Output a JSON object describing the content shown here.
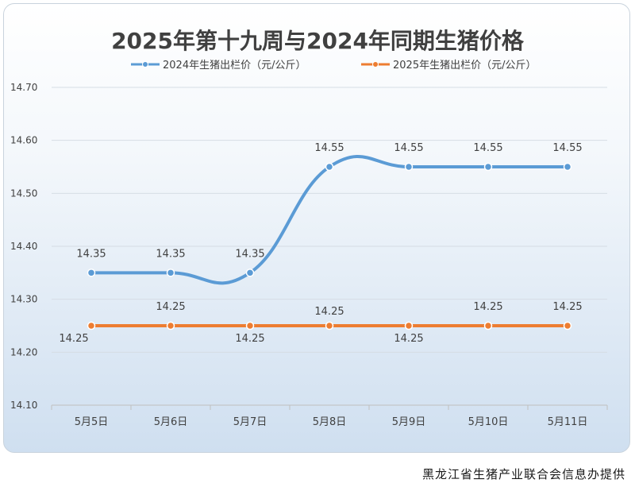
{
  "chart_data": {
    "type": "line",
    "title": "2025年第十九周与2024年同期生猪价格",
    "categories": [
      "5月5日",
      "5月6日",
      "5月7日",
      "5月8日",
      "5月9日",
      "5月10日",
      "5月11日"
    ],
    "series": [
      {
        "name": "2024年生猪出栏价（元/公斤）",
        "values": [
          14.35,
          14.35,
          14.35,
          14.55,
          14.55,
          14.55,
          14.55
        ],
        "labels": [
          "14.35",
          "14.35",
          "14.35",
          "14.55",
          "14.55",
          "14.55",
          "14.55"
        ],
        "color": "#5b9bd5",
        "smooth": true
      },
      {
        "name": "2025年生猪出栏价（元/公斤）",
        "values": [
          14.25,
          14.25,
          14.25,
          14.25,
          14.25,
          14.25,
          14.25
        ],
        "labels": [
          "14.25",
          "14.25",
          "14.25",
          "14.25",
          "14.25",
          "14.25",
          "14.25"
        ],
        "color": "#ed7d31",
        "smooth": false
      }
    ],
    "yticks": [
      "14.10",
      "14.20",
      "14.30",
      "14.40",
      "14.50",
      "14.60",
      "14.70"
    ],
    "ylim": [
      14.1,
      14.7
    ],
    "grid": true,
    "legend_position": "top"
  },
  "footer": {
    "source": "黑龙江省生猪产业联合会信息办提供"
  }
}
